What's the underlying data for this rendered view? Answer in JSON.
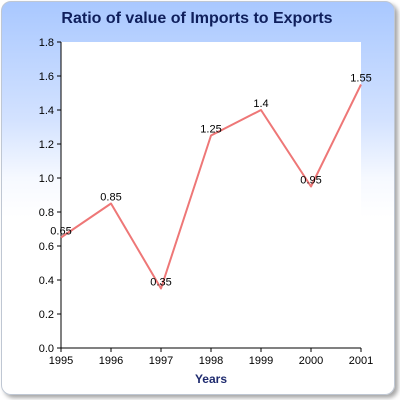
{
  "chart_data": {
    "type": "line",
    "title": "Ratio of value of Imports to Exports",
    "xlabel": "Years",
    "ylabel": "",
    "x": [
      "1995",
      "1996",
      "1997",
      "1998",
      "1999",
      "2000",
      "2001"
    ],
    "series": [
      {
        "values": [
          0.65,
          0.85,
          0.35,
          1.25,
          1.4,
          0.95,
          1.55
        ],
        "data_labels": [
          "0.65",
          "0.85",
          "0.35",
          "1.25",
          "1.4",
          "0.95",
          "1.55"
        ],
        "color": "#ee7777"
      }
    ],
    "ylim": [
      0,
      1.8
    ],
    "yticks": [
      "0.0",
      "0.2",
      "0.4",
      "0.6",
      "0.8",
      "1.0",
      "1.2",
      "1.4",
      "1.6",
      "1.8"
    ],
    "grid": false,
    "legend": "none"
  }
}
